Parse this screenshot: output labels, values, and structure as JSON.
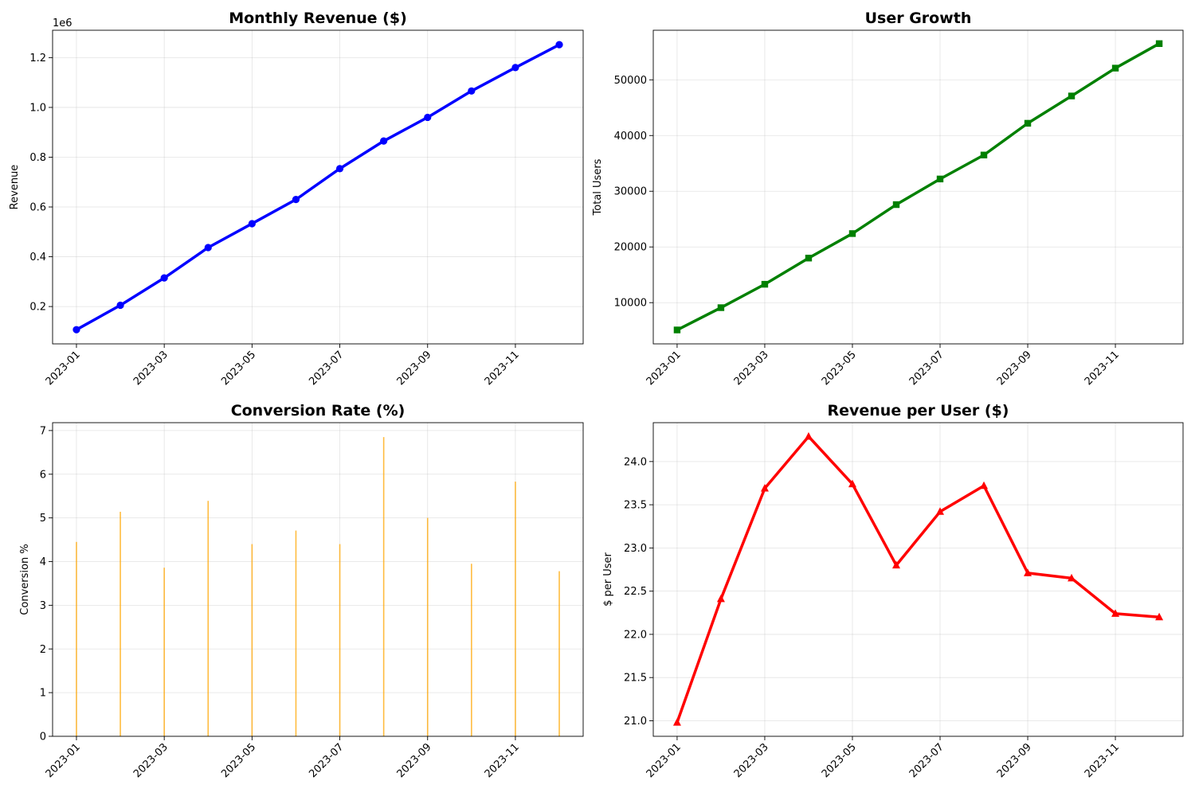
{
  "chart_data": [
    {
      "type": "line",
      "title": "Monthly Revenue ($)",
      "xlabel": "",
      "ylabel": "Revenue",
      "offset_label": "1e6",
      "x": [
        "2023-01",
        "2023-02",
        "2023-03",
        "2023-04",
        "2023-05",
        "2023-06",
        "2023-07",
        "2023-08",
        "2023-09",
        "2023-10",
        "2023-11",
        "2023-12"
      ],
      "xticks": [
        "2023-01",
        "2023-03",
        "2023-05",
        "2023-07",
        "2023-09",
        "2023-11"
      ],
      "ylim": [
        0.05,
        1.31
      ],
      "yticks": [
        0.2,
        0.4,
        0.6,
        0.8,
        1.0,
        1.2
      ],
      "ytick_labels": [
        "0.2",
        "0.4",
        "0.6",
        "0.8",
        "1.0",
        "1.2"
      ],
      "series": [
        {
          "values": [
            0.107,
            0.205,
            0.315,
            0.437,
            0.533,
            0.63,
            0.754,
            0.865,
            0.96,
            1.066,
            1.16,
            1.252
          ],
          "color": "#0000ff",
          "marker": "circle"
        }
      ],
      "grid": true
    },
    {
      "type": "line",
      "title": "User Growth",
      "xlabel": "",
      "ylabel": "Total Users",
      "x": [
        "2023-01",
        "2023-02",
        "2023-03",
        "2023-04",
        "2023-05",
        "2023-06",
        "2023-07",
        "2023-08",
        "2023-09",
        "2023-10",
        "2023-11",
        "2023-12"
      ],
      "xticks": [
        "2023-01",
        "2023-03",
        "2023-05",
        "2023-07",
        "2023-09",
        "2023-11"
      ],
      "ylim": [
        2600,
        58900
      ],
      "yticks": [
        10000,
        20000,
        30000,
        40000,
        50000
      ],
      "ytick_labels": [
        "10000",
        "20000",
        "30000",
        "40000",
        "50000"
      ],
      "series": [
        {
          "values": [
            5100,
            9100,
            13300,
            18000,
            22400,
            27600,
            32200,
            36500,
            42200,
            47100,
            52100,
            56500
          ],
          "color": "#008000",
          "marker": "square"
        }
      ],
      "grid": true
    },
    {
      "type": "bar",
      "title": "Conversion Rate (%)",
      "xlabel": "",
      "ylabel": "Conversion %",
      "x": [
        "2023-01",
        "2023-02",
        "2023-03",
        "2023-04",
        "2023-05",
        "2023-06",
        "2023-07",
        "2023-08",
        "2023-09",
        "2023-10",
        "2023-11",
        "2023-12"
      ],
      "xticks": [
        "2023-01",
        "2023-03",
        "2023-05",
        "2023-07",
        "2023-09",
        "2023-11"
      ],
      "ylim": [
        0,
        7.18
      ],
      "yticks": [
        0,
        1,
        2,
        3,
        4,
        5,
        6,
        7
      ],
      "ytick_labels": [
        "0",
        "1",
        "2",
        "3",
        "4",
        "5",
        "6",
        "7"
      ],
      "series": [
        {
          "values": [
            4.45,
            5.14,
            3.86,
            5.39,
            4.4,
            4.71,
            4.4,
            6.85,
            5.0,
            3.95,
            5.83,
            3.78
          ],
          "color": "#ffa500"
        }
      ],
      "grid": true
    },
    {
      "type": "line",
      "title": "Revenue per User ($)",
      "xlabel": "",
      "ylabel": "$ per User",
      "x": [
        "2023-01",
        "2023-02",
        "2023-03",
        "2023-04",
        "2023-05",
        "2023-06",
        "2023-07",
        "2023-08",
        "2023-09",
        "2023-10",
        "2023-11",
        "2023-12"
      ],
      "xticks": [
        "2023-01",
        "2023-03",
        "2023-05",
        "2023-07",
        "2023-09",
        "2023-11"
      ],
      "ylim": [
        20.82,
        24.45
      ],
      "yticks": [
        21.0,
        21.5,
        22.0,
        22.5,
        23.0,
        23.5,
        24.0
      ],
      "ytick_labels": [
        "21.0",
        "21.5",
        "22.0",
        "22.5",
        "23.0",
        "23.5",
        "24.0"
      ],
      "series": [
        {
          "values": [
            20.98,
            22.41,
            23.69,
            24.29,
            23.74,
            22.8,
            23.42,
            23.72,
            22.71,
            22.65,
            22.24,
            22.2
          ],
          "color": "#ff0000",
          "marker": "triangle"
        }
      ],
      "grid": true
    }
  ]
}
